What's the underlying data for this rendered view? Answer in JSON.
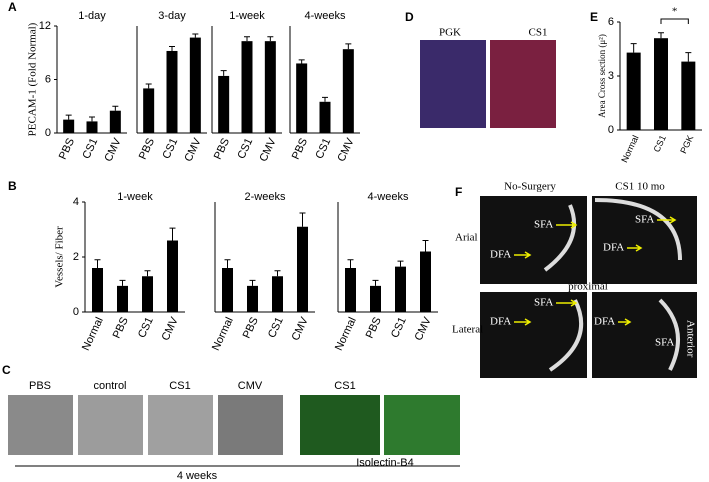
{
  "chart_data": [
    {
      "type": "bar",
      "label": "A",
      "ylabel": "PECAM-1 (Fold Normal)",
      "ylim": [
        0,
        12
      ],
      "yticks": [
        0,
        6,
        12
      ],
      "color": "#000000",
      "groups": [
        {
          "title": "1-day",
          "categories": [
            "PBS",
            "CS1",
            "CMV"
          ],
          "values": [
            1.5,
            1.3,
            2.5
          ],
          "errors": [
            0.5,
            0.5,
            0.5
          ]
        },
        {
          "title": "3-day",
          "categories": [
            "PBS",
            "CS1",
            "CMV"
          ],
          "values": [
            5.0,
            9.2,
            10.7
          ],
          "errors": [
            0.5,
            0.5,
            0.4
          ]
        },
        {
          "title": "1-week",
          "categories": [
            "PBS",
            "CS1",
            "CMV"
          ],
          "values": [
            6.4,
            10.3,
            10.3
          ],
          "errors": [
            0.6,
            0.5,
            0.5
          ]
        },
        {
          "title": "4-weeks",
          "categories": [
            "PBS",
            "CS1",
            "CMV"
          ],
          "values": [
            7.8,
            3.5,
            9.4
          ],
          "errors": [
            0.4,
            0.5,
            0.6
          ]
        }
      ]
    },
    {
      "type": "bar",
      "label": "B",
      "ylabel": "Vessels/ Fiber",
      "ylim": [
        0,
        4
      ],
      "yticks": [
        0,
        2,
        4
      ],
      "color": "#000000",
      "groups": [
        {
          "title": "1-week",
          "categories": [
            "Normal",
            "PBS",
            "CS1",
            "CMV"
          ],
          "values": [
            1.6,
            0.95,
            1.3,
            2.6
          ],
          "errors": [
            0.3,
            0.2,
            0.2,
            0.45
          ]
        },
        {
          "title": "2-weeks",
          "categories": [
            "Normal",
            "PBS",
            "CS1",
            "CMV"
          ],
          "values": [
            1.6,
            0.95,
            1.3,
            3.1
          ],
          "errors": [
            0.3,
            0.2,
            0.2,
            0.5
          ]
        },
        {
          "title": "4-weeks",
          "categories": [
            "Normal",
            "PBS",
            "CS1",
            "CMV"
          ],
          "values": [
            1.6,
            0.95,
            1.65,
            2.2
          ],
          "errors": [
            0.3,
            0.2,
            0.2,
            0.4
          ]
        }
      ]
    },
    {
      "type": "bar",
      "label": "E",
      "ylabel": "Area Cross  section (μ²)",
      "ylim": [
        0,
        6
      ],
      "yticks": [
        0,
        3,
        6
      ],
      "color": "#000000",
      "annotation": "*",
      "groups": [
        {
          "categories": [
            "Normal",
            "CS1",
            "PGK"
          ],
          "values": [
            4.3,
            5.1,
            3.8
          ],
          "errors": [
            0.5,
            0.3,
            0.5
          ]
        }
      ]
    }
  ],
  "panels": {
    "C": {
      "label": "C",
      "images": [
        "PBS",
        "control",
        "CS1",
        "CMV"
      ],
      "stain_title": "CS1",
      "footer": "4 weeks",
      "stain": "Isolectin-B4"
    },
    "D": {
      "label": "D",
      "images": [
        "PGK",
        "CS1"
      ]
    },
    "F": {
      "label": "F",
      "columns": [
        "No-Surgery",
        "CS1 10 mo"
      ],
      "rows": [
        "Arial",
        "Lateral"
      ],
      "between": "proximal",
      "arrows": [
        "SFA",
        "DFA",
        "SFA",
        "DFA",
        "SFA",
        "DFA",
        "SFA",
        "DFA"
      ],
      "direction": "Anterior"
    }
  }
}
